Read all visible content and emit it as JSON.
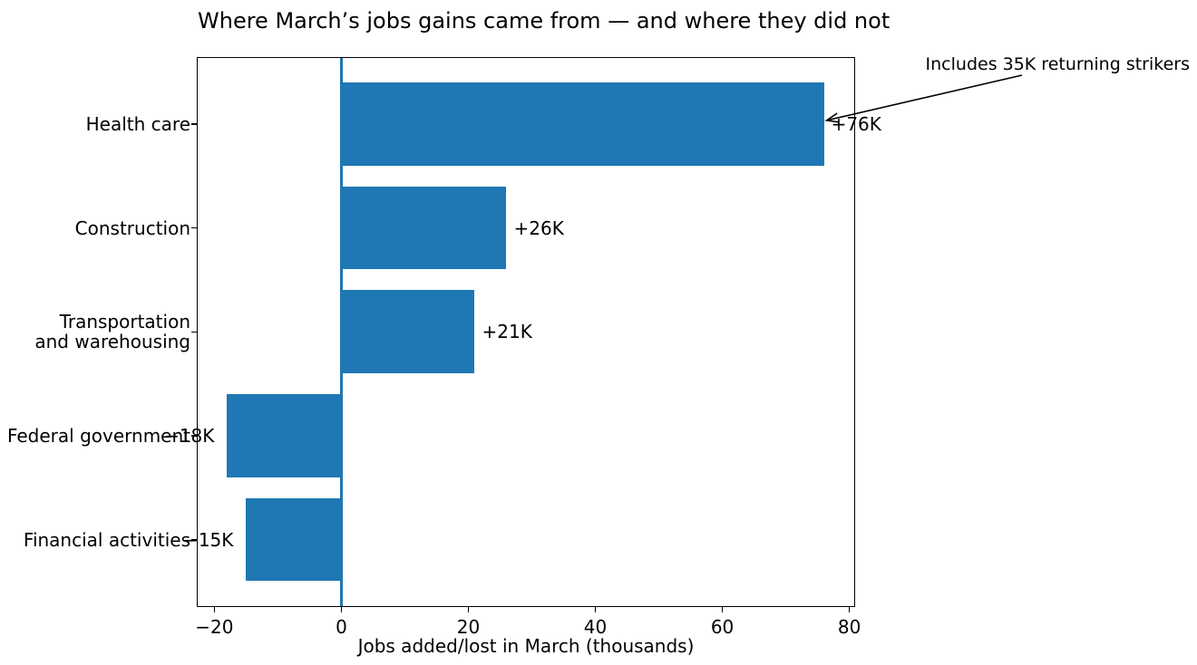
{
  "figure": {
    "title": "Where March’s jobs gains came from — and where they did not"
  },
  "chart_data": {
    "type": "bar",
    "orientation": "horizontal",
    "title": "Where March’s jobs gains came from — and where they did not",
    "categories": [
      "Health care",
      "Construction",
      "Transportation\nand warehousing",
      "Federal government",
      "Financial activities"
    ],
    "values": [
      76,
      26,
      21,
      -18,
      -15
    ],
    "bar_labels": [
      "+76K",
      "+26K",
      "+21K",
      "−18K",
      "−15K"
    ],
    "xlabel": "Jobs added/lost in March (thousands)",
    "ylabel": "",
    "x_ticks": [
      -20,
      0,
      20,
      40,
      60,
      80
    ],
    "x_tick_labels": [
      "−20",
      "0",
      "20",
      "40",
      "60",
      "80"
    ],
    "xlim": [
      -22.7,
      80.7
    ],
    "ylim_inverted": [
      -0.64,
      4.64
    ],
    "bar_height_fraction": 0.8,
    "grid": false,
    "legend": "none",
    "bar_color": "#1f77b4",
    "zero_line_color": "#1f77b4",
    "spine_color": "#000000",
    "annotation": {
      "text": "Includes 35K returning strikers",
      "points_to_bar": "Health care",
      "points_to_label": "+76K"
    }
  }
}
